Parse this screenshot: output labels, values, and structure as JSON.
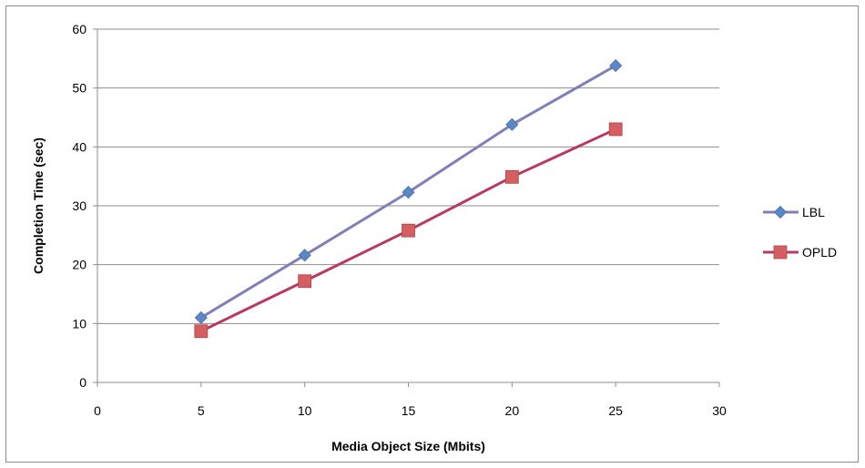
{
  "chart_data": {
    "type": "line",
    "title": "",
    "xlabel": "Media Object Size (Mbits)",
    "ylabel": "Completion Time (sec)",
    "xlim": [
      0,
      30
    ],
    "ylim": [
      0,
      60
    ],
    "xticks": [
      0,
      5,
      10,
      15,
      20,
      25,
      30
    ],
    "yticks": [
      0,
      10,
      20,
      30,
      40,
      50,
      60
    ],
    "grid": "horizontal",
    "legend": "right",
    "x": [
      5,
      10,
      15,
      20,
      25
    ],
    "series": [
      {
        "name": "LBL",
        "values": [
          11.0,
          21.6,
          32.3,
          43.8,
          53.8
        ],
        "color": "#7f7fb9",
        "marker_color": "#5b87c6",
        "marker": "diamond"
      },
      {
        "name": "OPLD",
        "values": [
          8.7,
          17.2,
          25.8,
          34.9,
          43.0
        ],
        "color": "#b83a63",
        "marker_color": "#d45f62",
        "marker": "square"
      }
    ]
  }
}
